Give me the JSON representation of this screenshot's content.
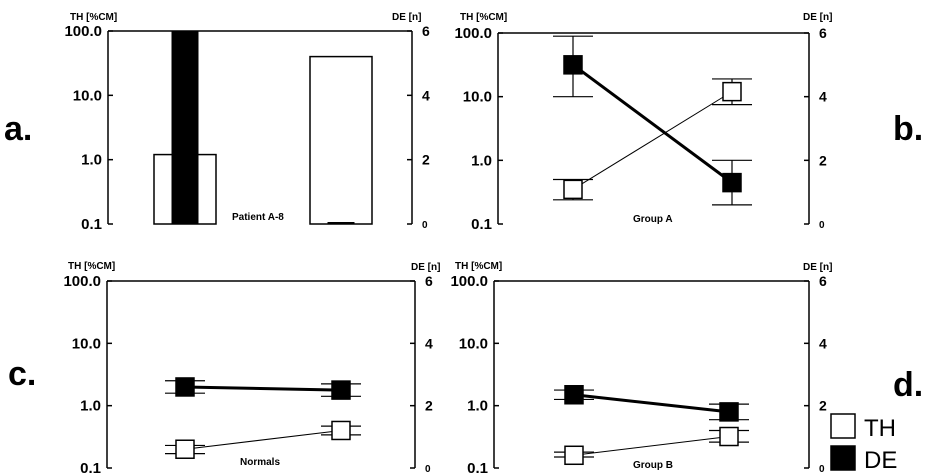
{
  "chart_data": [
    {
      "type": "bar",
      "panel_label": "a.",
      "caption": "Patient A-8",
      "left_axis_label": "TH [%CM]",
      "right_axis_label": "DE [n]",
      "left_ticks": [
        "100.0",
        "10.0",
        "1.0",
        "0.1"
      ],
      "right_ticks": [
        "6",
        "4",
        "2",
        "0"
      ],
      "left_scale": "log",
      "ylim_left": [
        0.1,
        100
      ],
      "ylim_right": [
        0,
        6
      ],
      "bars": [
        {
          "series": "TH",
          "group": 1,
          "value": 1.2
        },
        {
          "series": "DE",
          "group": 1,
          "value": 6
        },
        {
          "series": "TH",
          "group": 2,
          "value": 40
        },
        {
          "series": "DE",
          "group": 2,
          "value": 0
        }
      ]
    },
    {
      "type": "line",
      "panel_label": "b.",
      "caption": "Group A",
      "left_axis_label": "TH [%CM]",
      "right_axis_label": "DE [n]",
      "left_ticks": [
        "100.0",
        "10.0",
        "1.0",
        "0.1"
      ],
      "right_ticks": [
        "6",
        "4",
        "2",
        "0"
      ],
      "left_scale": "log",
      "ylim_left": [
        0.1,
        100
      ],
      "ylim_right": [
        0,
        6
      ],
      "series": [
        {
          "name": "TH",
          "axis": "left",
          "values": [
            0.35,
            12
          ],
          "err_low": [
            0.24,
            7.5
          ],
          "err_high": [
            0.5,
            19
          ]
        },
        {
          "name": "DE",
          "axis": "right",
          "values": [
            5.0,
            1.3
          ],
          "err_low": [
            4.0,
            0.6
          ],
          "err_high": [
            5.9,
            2.0
          ]
        }
      ]
    },
    {
      "type": "line",
      "panel_label": "c.",
      "caption": "Normals",
      "left_axis_label": "TH [%CM]",
      "right_axis_label": "DE [n]",
      "left_ticks": [
        "100.0",
        "10.0",
        "1.0",
        "0.1"
      ],
      "right_ticks": [
        "6",
        "4",
        "2",
        "0"
      ],
      "left_scale": "log",
      "ylim_left": [
        0.1,
        100
      ],
      "ylim_right": [
        0,
        6
      ],
      "series": [
        {
          "name": "TH",
          "axis": "left",
          "values": [
            0.2,
            0.4
          ],
          "err_low": [
            0.17,
            0.34
          ],
          "err_high": [
            0.23,
            0.47
          ]
        },
        {
          "name": "DE",
          "axis": "right",
          "values": [
            2.6,
            2.5
          ],
          "err_low": [
            2.4,
            2.3
          ],
          "err_high": [
            2.8,
            2.7
          ]
        }
      ]
    },
    {
      "type": "line",
      "panel_label": "d.",
      "caption": "Group B",
      "left_axis_label": "TH [%CM]",
      "right_axis_label": "DE [n]",
      "left_ticks": [
        "100.0",
        "10.0",
        "1.0",
        "0.1"
      ],
      "right_ticks": [
        "6",
        "4",
        "2",
        "0"
      ],
      "left_scale": "log",
      "ylim_left": [
        0.1,
        100
      ],
      "ylim_right": [
        0,
        6
      ],
      "series": [
        {
          "name": "TH",
          "axis": "left",
          "values": [
            0.16,
            0.32
          ],
          "err_low": [
            0.15,
            0.26
          ],
          "err_high": [
            0.18,
            0.4
          ]
        },
        {
          "name": "DE",
          "axis": "right",
          "values": [
            2.35,
            1.8
          ],
          "err_low": [
            2.2,
            1.55
          ],
          "err_high": [
            2.5,
            2.05
          ]
        }
      ]
    }
  ],
  "legend": [
    {
      "label": "TH",
      "fill": "#ffffff"
    },
    {
      "label": "DE",
      "fill": "#000000"
    }
  ]
}
